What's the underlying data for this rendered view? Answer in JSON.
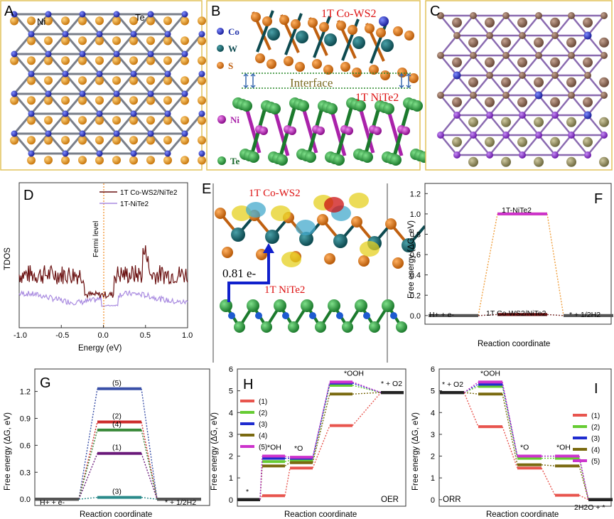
{
  "panels": {
    "A": {
      "label": "A",
      "atom1": "Ni",
      "atom2": "Te"
    },
    "B": {
      "label": "B",
      "title_top": "1T Co-WS2",
      "interface": "Interface",
      "title_bottom": "1T NiTe2",
      "legend": [
        "Co",
        "W",
        "S",
        "Ni",
        "Te"
      ]
    },
    "C": {
      "label": "C"
    },
    "D": {
      "label": "D",
      "legend": [
        "1T Co-WS2/NiTe2",
        "1T-NiTe2"
      ],
      "fermi": "Fermi level",
      "ylabel": "TDOS",
      "xlabel": "Energy (eV)",
      "xticks": [
        "-1.0",
        "-0.5",
        "0.0",
        "0.5",
        "1.0"
      ]
    },
    "E": {
      "label": "E",
      "top": "1T Co-WS2",
      "bottom": "1T NiTe2",
      "charge": "0.81 e-"
    },
    "F": {
      "label": "F",
      "ylabel": "Free energy (ΔG, eV)",
      "xlabel": "Reaction coordinate",
      "left": "H+ + e-",
      "right": "* + 1/2H2",
      "top": "1T-NiTe2",
      "mid": "1T Co-WS2/NiTe2",
      "yticks": [
        "0.0",
        "0.2",
        "0.4",
        "0.6",
        "0.8",
        "1.0",
        "1.2"
      ]
    },
    "G": {
      "label": "G",
      "ylabel": "Free energy (ΔG, eV)",
      "xlabel": "Reaction coordinate",
      "left": "H+ + e-",
      "right": "* + 1/2H2",
      "yticks": [
        "0.0",
        "0.3",
        "0.6",
        "0.9",
        "1.2"
      ],
      "levels": [
        "(5)",
        "(2)",
        "(4)",
        "(1)",
        "(3)"
      ]
    },
    "H": {
      "label": "H",
      "ylabel": "Free energy (ΔG, eV)",
      "xlabel": "Reaction coordinate",
      "tag": "OER",
      "yticks": [
        "0",
        "1",
        "2",
        "3",
        "4",
        "5",
        "6"
      ],
      "states": [
        "*",
        "*OH",
        "*O",
        "*OOH",
        "* + O2"
      ],
      "legend": [
        "(1)",
        "(2)",
        "(3)",
        "(4)",
        "(5)"
      ]
    },
    "I": {
      "label": "I",
      "ylabel": "Free energy (ΔG, eV)",
      "xlabel": "Reaction coordinate",
      "tag": "ORR",
      "yticks": [
        "0",
        "1",
        "2",
        "3",
        "4",
        "5",
        "6"
      ],
      "states": [
        "* + O2",
        "*OOH",
        "*O",
        "*OH",
        "2H2O + *"
      ],
      "legend": [
        "(1)",
        "(2)",
        "(3)",
        "(4)",
        "(5)"
      ]
    }
  },
  "series_colors": {
    "s1": "#e8554e",
    "s2": "#66cc33",
    "s3": "#1f2ccf",
    "s4": "#7a6a10",
    "s5": "#cc33cc"
  },
  "chart_data": [
    {
      "type": "line",
      "panel": "F",
      "series": [
        {
          "name": "1T-NiTe2",
          "values": [
            0,
            1.0,
            0
          ]
        },
        {
          "name": "1T Co-WS2/NiTe2",
          "values": [
            0,
            0.01,
            0
          ]
        }
      ]
    },
    {
      "type": "line",
      "panel": "G",
      "series": [
        {
          "name": "(5)",
          "values": [
            0,
            1.23,
            0
          ]
        },
        {
          "name": "(2)",
          "values": [
            0,
            0.86,
            0
          ]
        },
        {
          "name": "(4)",
          "values": [
            0,
            0.77,
            0
          ]
        },
        {
          "name": "(1)",
          "values": [
            0,
            0.51,
            0
          ]
        },
        {
          "name": "(3)",
          "values": [
            0,
            0.02,
            0
          ]
        }
      ]
    },
    {
      "type": "line",
      "panel": "H",
      "series": [
        {
          "name": "(1)",
          "values": [
            0,
            0.18,
            1.45,
            3.4,
            4.92
          ]
        },
        {
          "name": "(2)",
          "values": [
            0,
            1.75,
            1.8,
            5.25,
            4.92
          ]
        },
        {
          "name": "(3)",
          "values": [
            0,
            1.9,
            1.9,
            5.35,
            4.92
          ]
        },
        {
          "name": "(4)",
          "values": [
            0,
            1.55,
            1.7,
            4.85,
            4.92
          ]
        },
        {
          "name": "(5)",
          "values": [
            0,
            2.0,
            1.95,
            5.4,
            4.92
          ]
        }
      ]
    },
    {
      "type": "line",
      "panel": "I",
      "series": [
        {
          "name": "(1)",
          "values": [
            4.92,
            3.35,
            1.45,
            0.2,
            0
          ]
        },
        {
          "name": "(2)",
          "values": [
            4.92,
            5.2,
            1.9,
            1.9,
            0
          ]
        },
        {
          "name": "(3)",
          "values": [
            4.92,
            5.3,
            2.0,
            2.0,
            0
          ]
        },
        {
          "name": "(4)",
          "values": [
            4.92,
            4.85,
            1.6,
            1.55,
            0
          ]
        },
        {
          "name": "(5)",
          "values": [
            4.92,
            5.4,
            2.0,
            2.0,
            0
          ]
        }
      ]
    }
  ]
}
